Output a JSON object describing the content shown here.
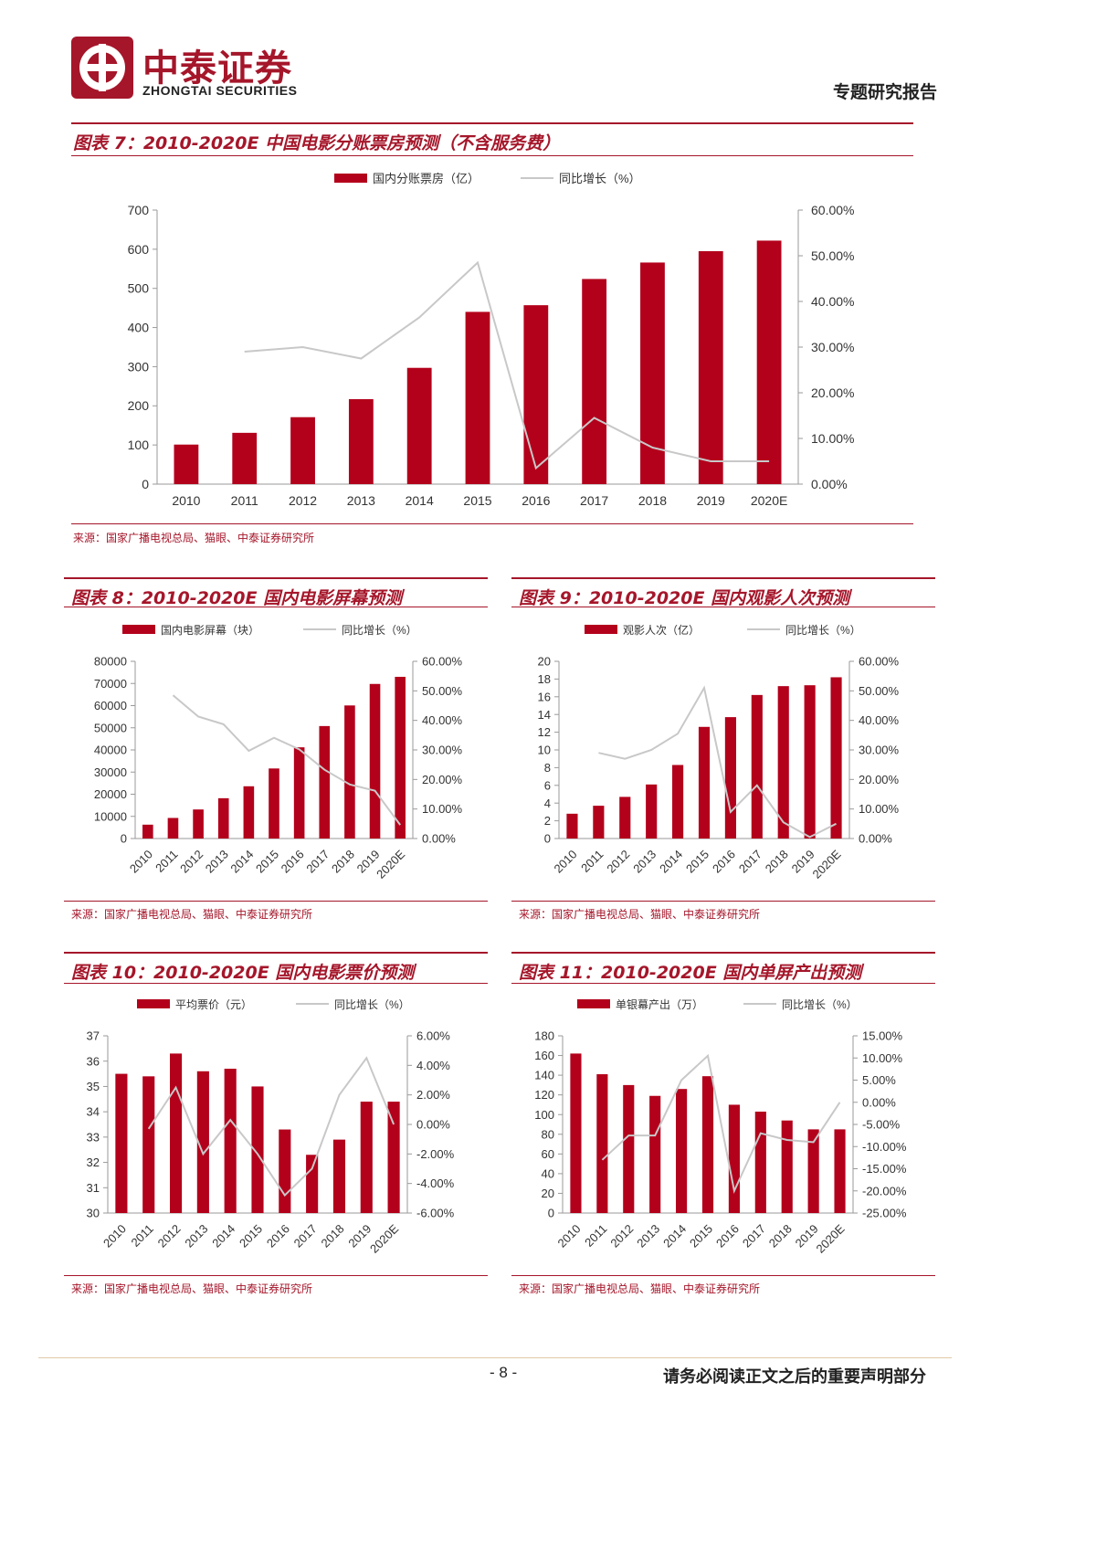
{
  "header": {
    "company_cn": "中泰证券",
    "company_en": "ZHONGTAI SECURITIES",
    "report_type": "专题研究报告"
  },
  "colors": {
    "accent": "#a5162a",
    "bar": "#b3001b",
    "line": "#c8c8c8"
  },
  "footer": {
    "page": "- 8 -",
    "note": "请务必阅读正文之后的重要声明部分"
  },
  "figures": [
    {
      "title": "图表 7：2010-2020E 中国电影分账票房预测（不含服务费）",
      "source": "来源：国家广播电视总局、猫眼、中泰证券研究所"
    },
    {
      "title": "图表 8：2010-2020E 国内电影屏幕预测",
      "source": "来源：国家广播电视总局、猫眼、中泰证券研究所"
    },
    {
      "title": "图表 9：2010-2020E 国内观影人次预测",
      "source": "来源：国家广播电视总局、猫眼、中泰证券研究所"
    },
    {
      "title": "图表 10：2010-2020E 国内电影票价预测",
      "source": "来源：国家广播电视总局、猫眼、中泰证券研究所"
    },
    {
      "title": "图表 11：2010-2020E 国内单屏产出预测",
      "source": "来源：国家广播电视总局、猫眼、中泰证券研究所"
    }
  ],
  "chart_data": [
    {
      "type": "bar+line",
      "categories": [
        "2010",
        "2011",
        "2012",
        "2013",
        "2014",
        "2015",
        "2016",
        "2017",
        "2018",
        "2019",
        "2020E"
      ],
      "series": [
        {
          "name": "国内分账票房（亿）",
          "kind": "bar",
          "axis": "left",
          "values": [
            101,
            131,
            171,
            217,
            297,
            440,
            457,
            524,
            566,
            595,
            622
          ]
        },
        {
          "name": "同比增长（%）",
          "kind": "line",
          "axis": "right",
          "values": [
            null,
            29.0,
            30.0,
            27.5,
            36.5,
            48.5,
            3.5,
            14.5,
            8.0,
            5.0,
            5.0
          ]
        }
      ],
      "left_ticks": [
        "0",
        "100",
        "200",
        "300",
        "400",
        "500",
        "600",
        "700"
      ],
      "ylim_left": [
        0,
        700
      ],
      "right_ticks": [
        "0.00%",
        "10.00%",
        "20.00%",
        "30.00%",
        "40.00%",
        "50.00%",
        "60.00%"
      ],
      "ylim_right": [
        0,
        60
      ],
      "legend": "top"
    },
    {
      "type": "bar+line",
      "categories": [
        "2010",
        "2011",
        "2012",
        "2013",
        "2014",
        "2015",
        "2016",
        "2017",
        "2018",
        "2019",
        "2020E"
      ],
      "series": [
        {
          "name": "国内电影屏幕（块）",
          "kind": "bar",
          "axis": "left",
          "values": [
            6256,
            9286,
            13118,
            18195,
            23592,
            31627,
            41179,
            50776,
            60079,
            69787,
            73000
          ]
        },
        {
          "name": "同比增长（%）",
          "kind": "line",
          "axis": "right",
          "values": [
            null,
            48.5,
            41.3,
            38.7,
            29.7,
            34.1,
            30.2,
            23.3,
            18.3,
            16.2,
            4.6
          ]
        }
      ],
      "left_ticks": [
        "0",
        "10000",
        "20000",
        "30000",
        "40000",
        "50000",
        "60000",
        "70000",
        "80000"
      ],
      "ylim_left": [
        0,
        80000
      ],
      "right_ticks": [
        "0.00%",
        "10.00%",
        "20.00%",
        "30.00%",
        "40.00%",
        "50.00%",
        "60.00%"
      ],
      "ylim_right": [
        0,
        60
      ],
      "legend": "top"
    },
    {
      "type": "bar+line",
      "categories": [
        "2010",
        "2011",
        "2012",
        "2013",
        "2014",
        "2015",
        "2016",
        "2017",
        "2018",
        "2019",
        "2020E"
      ],
      "series": [
        {
          "name": "观影人次（亿）",
          "kind": "bar",
          "axis": "left",
          "values": [
            2.8,
            3.7,
            4.7,
            6.1,
            8.3,
            12.6,
            13.7,
            16.2,
            17.2,
            17.3,
            18.2
          ]
        },
        {
          "name": "同比增长（%）",
          "kind": "line",
          "axis": "right",
          "values": [
            null,
            29.0,
            27.0,
            30.0,
            35.5,
            51.0,
            9.0,
            18.0,
            5.5,
            0.5,
            5.0
          ]
        }
      ],
      "left_ticks": [
        "0",
        "2",
        "4",
        "6",
        "8",
        "10",
        "12",
        "14",
        "16",
        "18",
        "20"
      ],
      "ylim_left": [
        0,
        20
      ],
      "right_ticks": [
        "0.00%",
        "10.00%",
        "20.00%",
        "30.00%",
        "40.00%",
        "50.00%",
        "60.00%"
      ],
      "ylim_right": [
        0,
        60
      ],
      "legend": "top"
    },
    {
      "type": "bar+line",
      "categories": [
        "2010",
        "2011",
        "2012",
        "2013",
        "2014",
        "2015",
        "2016",
        "2017",
        "2018",
        "2019",
        "2020E"
      ],
      "series": [
        {
          "name": "平均票价（元）",
          "kind": "bar",
          "axis": "left",
          "values": [
            35.5,
            35.4,
            36.3,
            35.6,
            35.7,
            35.0,
            33.3,
            32.3,
            32.9,
            34.4,
            34.4
          ]
        },
        {
          "name": "同比增长（%）",
          "kind": "line",
          "axis": "right",
          "values": [
            null,
            -0.3,
            2.5,
            -2.0,
            0.3,
            -2.0,
            -4.8,
            -3.0,
            2.0,
            4.5,
            0.0
          ]
        }
      ],
      "left_ticks": [
        "30",
        "31",
        "32",
        "33",
        "34",
        "35",
        "36",
        "37"
      ],
      "ylim_left": [
        30,
        37
      ],
      "right_ticks": [
        "-6.00%",
        "-4.00%",
        "-2.00%",
        "0.00%",
        "2.00%",
        "4.00%",
        "6.00%"
      ],
      "ylim_right": [
        -6,
        6
      ],
      "legend": "top"
    },
    {
      "type": "bar+line",
      "categories": [
        "2010",
        "2011",
        "2012",
        "2013",
        "2014",
        "2015",
        "2016",
        "2017",
        "2018",
        "2019",
        "2020E"
      ],
      "series": [
        {
          "name": "单银幕产出（万）",
          "kind": "bar",
          "axis": "left",
          "values": [
            162,
            141,
            130,
            119,
            126,
            139,
            110,
            103,
            94,
            85,
            85
          ]
        },
        {
          "name": "同比增长（%）",
          "kind": "line",
          "axis": "right",
          "values": [
            null,
            -13.0,
            -7.5,
            -7.5,
            5.0,
            10.5,
            -20.0,
            -7.0,
            -8.5,
            -9.0,
            0.0
          ]
        }
      ],
      "left_ticks": [
        "0",
        "20",
        "40",
        "60",
        "80",
        "100",
        "120",
        "140",
        "160",
        "180"
      ],
      "ylim_left": [
        0,
        180
      ],
      "right_ticks": [
        "-25.00%",
        "-20.00%",
        "-15.00%",
        "-10.00%",
        "-5.00%",
        "0.00%",
        "5.00%",
        "10.00%",
        "15.00%"
      ],
      "ylim_right": [
        -25,
        15
      ],
      "legend": "top"
    }
  ]
}
